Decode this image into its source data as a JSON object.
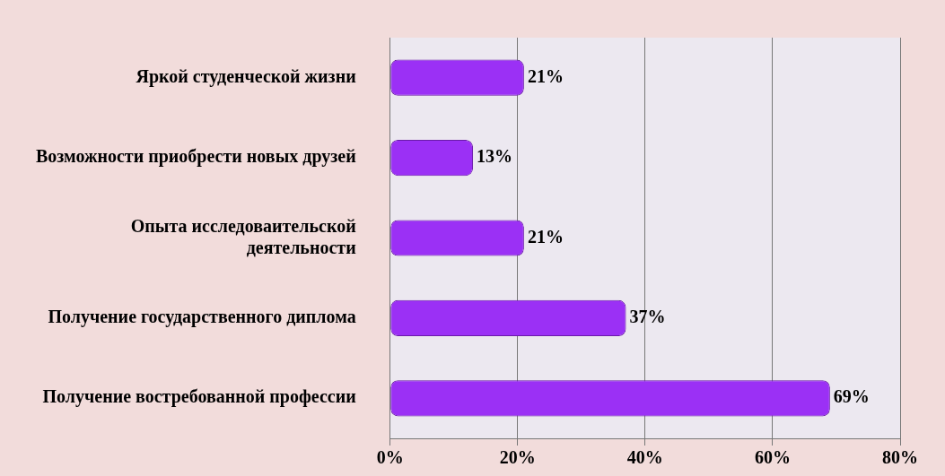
{
  "chart_data": {
    "type": "bar",
    "orientation": "horizontal",
    "categories": [
      "Яркой студенческой жизни",
      "Возможности приобрести новых друзей",
      "Опыта исследоваительской деятельности",
      "Получение государственного диплома",
      "Получение востребованной профессии"
    ],
    "values": [
      21,
      13,
      21,
      37,
      69
    ],
    "color": "#9b30f5",
    "value_labels": [
      "21%",
      "13%",
      "21%",
      "37%",
      "69%"
    ],
    "xlim": [
      0,
      80
    ],
    "xticks": [
      {
        "value": 0,
        "label": "0%"
      },
      {
        "value": 20,
        "label": "20%"
      },
      {
        "value": 40,
        "label": "40%"
      },
      {
        "value": 60,
        "label": "60%"
      },
      {
        "value": 80,
        "label": "80%"
      }
    ],
    "grid": "x",
    "legend": false
  }
}
